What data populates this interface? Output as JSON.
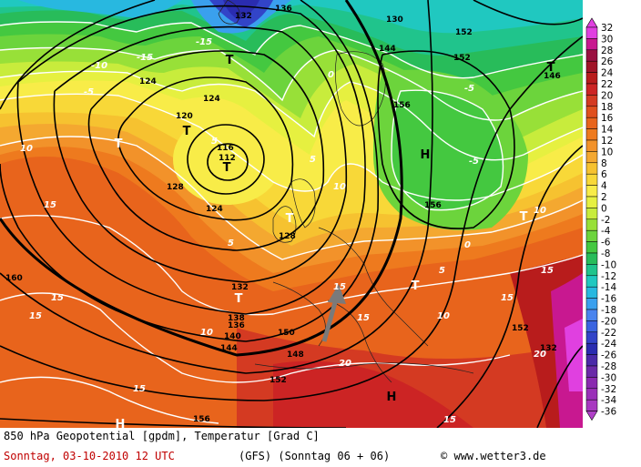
{
  "footer": {
    "title": "850 hPa Geopotential [gpdm], Temperatur [Grad C]",
    "date": "Sonntag, 03-10-2010  12 UTC",
    "model": "(GFS)  (Sonntag 06 + 06)",
    "copyright": "www.wetter3.de"
  },
  "legend": {
    "labels": [
      "32",
      "30",
      "28",
      "26",
      "24",
      "22",
      "20",
      "18",
      "16",
      "14",
      "12",
      "10",
      "8",
      "6",
      "4",
      "2",
      "0",
      "-2",
      "-4",
      "-6",
      "-8",
      "-10",
      "-12",
      "-14",
      "-16",
      "-18",
      "-20",
      "-22",
      "-24",
      "-26",
      "-28",
      "-30",
      "-32",
      "-34",
      "-36"
    ],
    "colors": [
      "#e040e0",
      "#c81890",
      "#9a1040",
      "#a01428",
      "#b81c1c",
      "#cc2424",
      "#d43a22",
      "#e0501e",
      "#e8641c",
      "#ee7a1e",
      "#f2922a",
      "#f4a830",
      "#f6c230",
      "#f8d838",
      "#f8ec48",
      "#e6f040",
      "#c8ec3c",
      "#98e038",
      "#6cd43c",
      "#44c840",
      "#28bc5a",
      "#20c48c",
      "#20c8c0",
      "#28b8e0",
      "#3aa0ee",
      "#4a84ee",
      "#3a64e0",
      "#3244c8",
      "#2a2cb0",
      "#4a2aa8",
      "#6a2aa8",
      "#8a2ab0",
      "#9a30b8",
      "#a838c0",
      "#b040c8"
    ]
  },
  "map": {
    "high_label": "H",
    "low_label": "T",
    "geopotential_labels": [
      "116",
      "112",
      "120",
      "124",
      "128",
      "132",
      "136",
      "138",
      "140",
      "144",
      "148",
      "152",
      "156",
      "160",
      "130",
      "150",
      "146"
    ],
    "temperature_labels": [
      "-5",
      "-10",
      "-15",
      "0",
      "5",
      "10",
      "15",
      "20"
    ]
  }
}
